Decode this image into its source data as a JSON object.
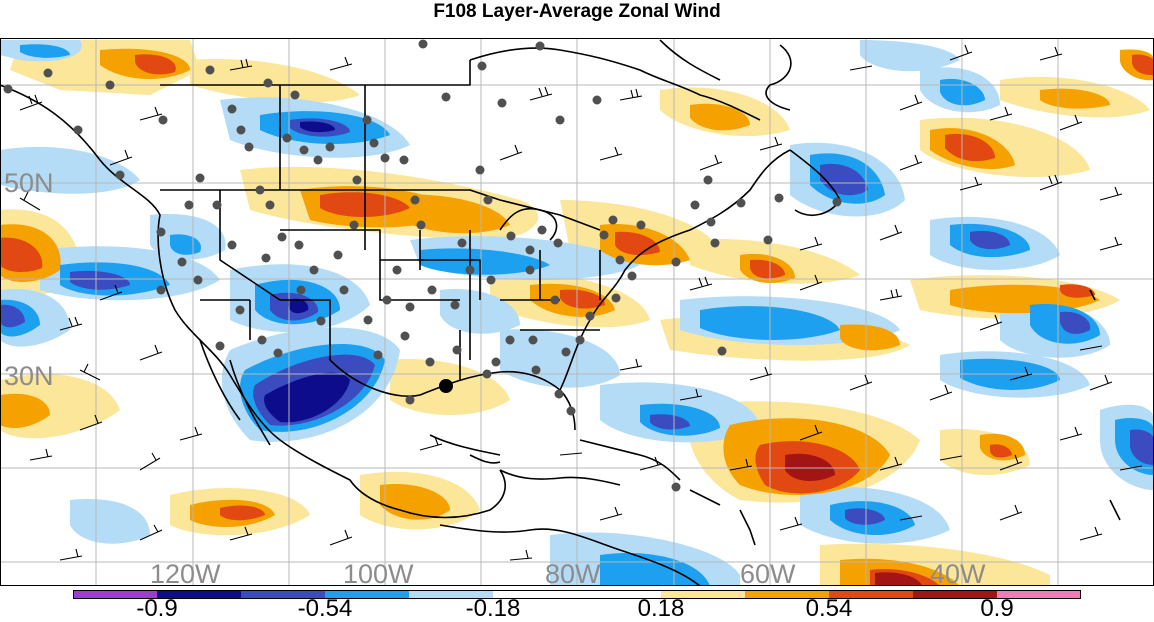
{
  "title": "F108 Layer-Average Zonal Wind",
  "lat_labels": [
    "50N",
    "30N"
  ],
  "lon_labels": [
    "120W",
    "100W",
    "80W",
    "60W",
    "40W"
  ],
  "colorbar": {
    "colors": [
      "#9a3fd1",
      "#0c0c8c",
      "#3a4cc0",
      "#1ea0f0",
      "#b4dcf7",
      "#ffffff",
      "#ffffff",
      "#fbe69a",
      "#f5a100",
      "#e24812",
      "#a31515",
      "#f07cb8"
    ],
    "tick_labels": [
      "-0.9",
      "-0.54",
      "-0.18",
      "0.18",
      "0.54",
      "0.9"
    ]
  },
  "marker_icon": "station-dot-icon",
  "highlight_icon": "target-location-icon"
}
